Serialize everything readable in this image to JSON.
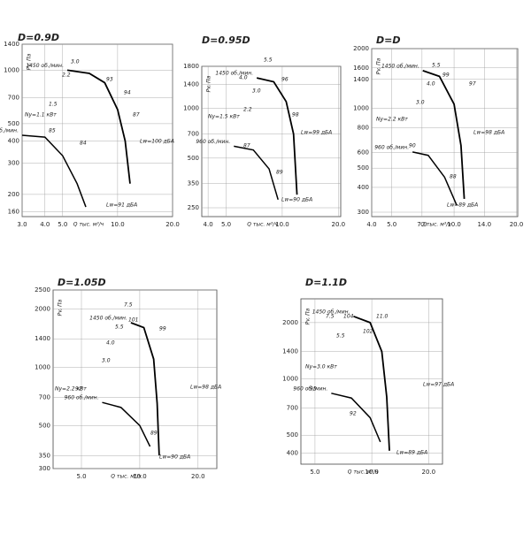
{
  "chart_data": [
    {
      "type": "line",
      "title": "D=0.9D",
      "xlabel": "Q тыс. м³/ч",
      "ylabel": "Pv, Па",
      "xlog": true,
      "ylog": true,
      "grid": true,
      "xlim": [
        3,
        20
      ],
      "ylim": [
        150,
        1400
      ],
      "xticks": [
        {
          "value": 3,
          "label": "3.0"
        },
        {
          "value": 4,
          "label": "4.0"
        },
        {
          "value": 5,
          "label": "5.0"
        },
        {
          "value": 10,
          "label": "10.0"
        },
        {
          "value": 20,
          "label": "20.0"
        }
      ],
      "yticks": [
        1400,
        1000,
        700,
        500,
        400,
        300,
        200,
        160
      ],
      "series": [
        {
          "name": "1450 об./мин.",
          "color": "#000000",
          "x": [
            5.3,
            7,
            8.5,
            10,
            11,
            11.7
          ],
          "values": [
            1000,
            960,
            850,
            600,
            400,
            230
          ]
        },
        {
          "name": "960 об./мин.",
          "color": "#000000",
          "x": [
            3,
            4,
            5,
            6,
            6.7
          ],
          "values": [
            430,
            420,
            330,
            230,
            170
          ]
        }
      ],
      "annotations": [
        "Ny=1.1 кВт",
        "Lw=100 дБА",
        "Lw=91 дБА",
        "3.0",
        "2.2",
        "1.5",
        "93",
        "94",
        "87",
        "85",
        "84"
      ]
    },
    {
      "type": "line",
      "title": "D=0.95D",
      "xlabel": "Q тыс. м³/ч",
      "ylabel": "Pv, Па",
      "xlog": true,
      "ylog": true,
      "grid": true,
      "xlim": [
        3.7,
        20.6
      ],
      "ylim": [
        221,
        1800
      ],
      "xticks": [
        {
          "value": 4,
          "label": "4.0"
        },
        {
          "value": 5,
          "label": "5.0"
        },
        {
          "value": 10,
          "label": "10.0"
        },
        {
          "value": 20,
          "label": "20.0"
        }
      ],
      "yticks": [
        1800,
        1400,
        1000,
        700,
        500,
        350,
        250
      ],
      "series": [
        {
          "name": "1450 об./мин.",
          "color": "#000000",
          "x": [
            7.3,
            9,
            10.5,
            11.5,
            12
          ],
          "values": [
            1530,
            1450,
            1100,
            700,
            300
          ]
        },
        {
          "name": "960 об./мин.",
          "color": "#000000",
          "x": [
            5.5,
            7,
            8.5,
            9.5
          ],
          "values": [
            590,
            560,
            430,
            280
          ]
        }
      ],
      "annotations": [
        "Ny=1.5 кВт",
        "Lw=99 дБА",
        "Lw=90 дБА",
        "5.5",
        "4.0",
        "3.0",
        "2.2",
        "96",
        "98",
        "87",
        "89"
      ]
    },
    {
      "type": "line",
      "title": "D=D",
      "xlabel": "Q тыс. м³/ч",
      "ylabel": "Pv, Па",
      "xlog": true,
      "ylog": true,
      "grid": true,
      "xlim": [
        4,
        20.3
      ],
      "ylim": [
        285,
        2000
      ],
      "xticks": [
        {
          "value": 4,
          "label": "4.0"
        },
        {
          "value": 5,
          "label": "5.0"
        },
        {
          "value": 7,
          "label": "7.0"
        },
        {
          "value": 10,
          "label": "10.0"
        },
        {
          "value": 14,
          "label": "14.0"
        },
        {
          "value": 20,
          "label": "20.0"
        }
      ],
      "yticks": [
        2000,
        1600,
        1400,
        1000,
        800,
        600,
        500,
        400,
        300
      ],
      "series": [
        {
          "name": "1450 об./мин.",
          "color": "#000000",
          "x": [
            7.06,
            8.5,
            10,
            10.8,
            11.2
          ],
          "values": [
            1550,
            1450,
            1050,
            650,
            350
          ]
        },
        {
          "name": "960 об./мин.",
          "color": "#000000",
          "x": [
            6.3,
            7.5,
            9,
            10.3
          ],
          "values": [
            603,
            580,
            450,
            325
          ]
        }
      ],
      "annotations": [
        "Ny=2.2 кВт",
        "Lw=98 дБА",
        "Lw=89 дБА",
        "5.5",
        "4.0",
        "3.0",
        "99",
        "97",
        "90",
        "88"
      ]
    },
    {
      "type": "line",
      "title": "D=1.05D",
      "xlabel": "Q тыс. м³/ч",
      "ylabel": "Pv, Па",
      "xlog": true,
      "ylog": true,
      "grid": true,
      "xlim": [
        3.57,
        25
      ],
      "ylim": [
        300,
        2500
      ],
      "xticks": [
        {
          "value": 5,
          "label": "5.0"
        },
        {
          "value": 10,
          "label": "10.0"
        },
        {
          "value": 20,
          "label": "20.0"
        }
      ],
      "yticks": [
        2500,
        2000,
        1400,
        1000,
        700,
        500,
        350,
        300
      ],
      "series": [
        {
          "name": "1450 об./мин.",
          "color": "#000000",
          "x": [
            9,
            10.5,
            11.8,
            12.3,
            12.6
          ],
          "values": [
            1695,
            1600,
            1100,
            650,
            351
          ]
        },
        {
          "name": "960 об./мин.",
          "color": "#000000",
          "x": [
            6.4,
            8,
            10,
            11.3
          ],
          "values": [
            658,
            620,
            500,
            390
          ]
        }
      ],
      "annotations": [
        "Ny=2.2 кВт",
        "Lw=98 дБА",
        "Lw=90 дБА",
        "7.5",
        "5.5",
        "4.0",
        "3.0",
        "101",
        "99",
        "92",
        "89"
      ]
    },
    {
      "type": "line",
      "title": "D=1.1D",
      "xlabel": "Q тыс. м³/ч",
      "ylabel": "Pv, Па",
      "xlog": true,
      "ylog": true,
      "grid": true,
      "xlim": [
        4.21,
        23.7
      ],
      "ylim": [
        350,
        2680
      ],
      "xticks": [
        {
          "value": 5,
          "label": "5.0"
        },
        {
          "value": 10,
          "label": "10.0"
        },
        {
          "value": 20,
          "label": "20.0"
        }
      ],
      "yticks": [
        2000,
        1400,
        1000,
        700,
        500,
        400
      ],
      "series": [
        {
          "name": "1450 об./мин.",
          "color": "#000000",
          "x": [
            8,
            9.8,
            11.3,
            12,
            12.4
          ],
          "values": [
            2160,
            2000,
            1400,
            800,
            413
          ]
        },
        {
          "name": "960 об./мин.",
          "color": "#000000",
          "x": [
            6.1,
            7.8,
            9.8,
            11.1
          ],
          "values": [
            838,
            790,
            620,
            460
          ]
        }
      ],
      "annotations": [
        "Ny=3.0 кВт",
        "Lw=97 дБА",
        "Lw=89 дБА",
        "7.5",
        "5.5",
        "11.0",
        "104",
        "102",
        "95",
        "92"
      ]
    }
  ]
}
